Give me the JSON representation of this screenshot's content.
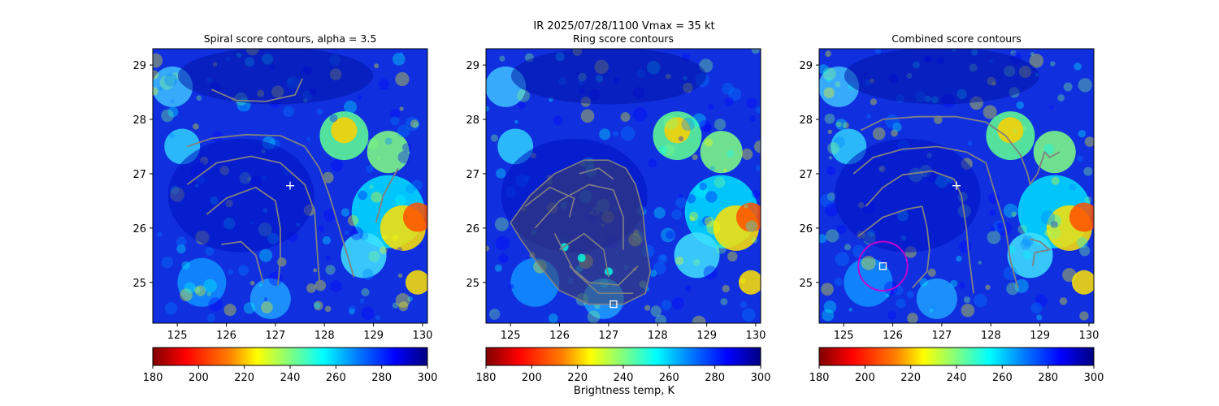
{
  "suptitle": "IR  2025/07/28/1100    Vmax = 35 kt",
  "colorbar_label": "Brightness temp, K",
  "colormap": [
    "#800000",
    "#ff0000",
    "#ff8000",
    "#ffff00",
    "#80ff80",
    "#00ffff",
    "#0080ff",
    "#0000ff",
    "#000080"
  ],
  "contour_color": "#808080",
  "marker_color": "#ffffff",
  "circle_color": "#cc00cc",
  "chart_data": [
    {
      "type": "heatmap",
      "title": "Spiral score contours, alpha =  3.5",
      "xlim": [
        124.5,
        130.1
      ],
      "ylim": [
        24.25,
        29.3
      ],
      "xticks": [
        "125",
        "126",
        "127",
        "128",
        "129",
        "130"
      ],
      "yticks": [
        "25",
        "26",
        "27",
        "28",
        "29"
      ],
      "colorbar": {
        "range": [
          180,
          300
        ],
        "ticks": [
          "180",
          "200",
          "220",
          "240",
          "260",
          "280",
          "300"
        ]
      },
      "center_marker": {
        "symbol": "plus",
        "x": 127.3,
        "y": 26.78
      },
      "contours": [
        [
          [
            125.7,
            28.55
          ],
          [
            126.2,
            28.35
          ],
          [
            126.8,
            28.33
          ],
          [
            127.4,
            28.45
          ],
          [
            127.55,
            28.75
          ]
        ],
        [
          [
            125.2,
            27.5
          ],
          [
            125.7,
            27.65
          ],
          [
            126.4,
            27.72
          ],
          [
            127.1,
            27.7
          ],
          [
            127.6,
            27.5
          ],
          [
            127.9,
            27.1
          ],
          [
            128.1,
            26.6
          ],
          [
            128.3,
            26.0
          ],
          [
            128.5,
            25.4
          ],
          [
            128.6,
            25.1
          ]
        ],
        [
          [
            125.2,
            26.8
          ],
          [
            125.8,
            27.2
          ],
          [
            126.5,
            27.32
          ],
          [
            127.1,
            27.2
          ],
          [
            127.6,
            26.8
          ],
          [
            127.8,
            26.3
          ],
          [
            127.85,
            25.6
          ],
          [
            127.9,
            25.0
          ]
        ],
        [
          [
            125.6,
            26.25
          ],
          [
            126.0,
            26.55
          ],
          [
            126.6,
            26.75
          ],
          [
            127.0,
            26.5
          ],
          [
            127.1,
            26.0
          ],
          [
            127.1,
            25.4
          ],
          [
            127.05,
            24.95
          ]
        ],
        [
          [
            125.9,
            25.7
          ],
          [
            126.3,
            25.75
          ],
          [
            126.6,
            25.5
          ],
          [
            126.75,
            25.0
          ]
        ],
        [
          [
            129.5,
            27.1
          ],
          [
            129.2,
            26.6
          ],
          [
            129.05,
            26.1
          ]
        ]
      ]
    },
    {
      "type": "heatmap",
      "title": "Ring score contours",
      "xlim": [
        124.5,
        130.1
      ],
      "ylim": [
        24.25,
        29.3
      ],
      "xticks": [
        "125",
        "126",
        "127",
        "128",
        "129",
        "130"
      ],
      "yticks": [
        "25",
        "26",
        "27",
        "28",
        "29"
      ],
      "colorbar": {
        "range": [
          180,
          300
        ],
        "ticks": [
          "180",
          "200",
          "220",
          "240",
          "260",
          "280",
          "300"
        ]
      },
      "center_marker": {
        "symbol": "square",
        "x": 127.1,
        "y": 24.6
      },
      "contours": [
        [
          [
            125.0,
            26.1
          ],
          [
            125.4,
            26.6
          ],
          [
            125.9,
            27.0
          ],
          [
            126.5,
            27.25
          ],
          [
            127.0,
            27.25
          ],
          [
            127.35,
            27.1
          ],
          [
            127.55,
            26.8
          ],
          [
            127.7,
            26.3
          ],
          [
            127.75,
            25.8
          ],
          [
            127.85,
            25.2
          ],
          [
            127.75,
            24.8
          ],
          [
            127.3,
            24.6
          ],
          [
            126.6,
            24.6
          ],
          [
            126.0,
            24.85
          ],
          [
            125.6,
            25.3
          ],
          [
            125.2,
            25.8
          ],
          [
            125.0,
            26.1
          ]
        ],
        [
          [
            125.5,
            26.0
          ],
          [
            126.0,
            26.5
          ],
          [
            126.6,
            26.8
          ],
          [
            127.1,
            26.7
          ],
          [
            127.3,
            26.2
          ],
          [
            127.3,
            25.6
          ]
        ],
        [
          [
            126.0,
            25.6
          ],
          [
            126.5,
            25.9
          ],
          [
            126.9,
            25.6
          ],
          [
            127.0,
            25.1
          ]
        ],
        [
          [
            125.3,
            26.4
          ],
          [
            125.8,
            26.75
          ],
          [
            126.3,
            26.55
          ],
          [
            126.2,
            26.2
          ]
        ],
        [
          [
            126.4,
            27.0
          ],
          [
            126.8,
            27.1
          ],
          [
            127.1,
            26.9
          ]
        ],
        [
          [
            126.2,
            25.3
          ],
          [
            126.6,
            25.0
          ],
          [
            127.2,
            24.95
          ],
          [
            127.6,
            25.3
          ]
        ],
        [
          [
            125.9,
            25.9
          ],
          [
            126.3,
            25.2
          ],
          [
            126.8,
            24.8
          ],
          [
            127.5,
            24.8
          ]
        ]
      ],
      "cyan_patches": [
        [
          126.1,
          25.65
        ],
        [
          126.45,
          25.45
        ],
        [
          127.0,
          25.2
        ]
      ]
    },
    {
      "type": "heatmap",
      "title": "Combined score contours",
      "xlim": [
        124.5,
        130.1
      ],
      "ylim": [
        24.25,
        29.3
      ],
      "xticks": [
        "125",
        "126",
        "127",
        "128",
        "129",
        "130"
      ],
      "yticks": [
        "25",
        "26",
        "27",
        "28",
        "29"
      ],
      "colorbar": {
        "range": [
          180,
          300
        ],
        "ticks": [
          "180",
          "200",
          "220",
          "240",
          "260",
          "280",
          "300"
        ]
      },
      "center_marker": {
        "symbol": "plus",
        "x": 127.3,
        "y": 26.78
      },
      "square_marker": {
        "x": 125.8,
        "y": 25.3
      },
      "circle": {
        "x": 125.8,
        "y": 25.3,
        "r_deg": 0.5
      },
      "contours": [
        [
          [
            125.35,
            27.8
          ],
          [
            125.8,
            28.0
          ],
          [
            126.5,
            28.05
          ],
          [
            127.3,
            28.05
          ],
          [
            127.9,
            27.95
          ],
          [
            128.3,
            27.7
          ],
          [
            128.6,
            27.35
          ],
          [
            128.75,
            27.0
          ],
          [
            128.8,
            26.8
          ],
          [
            128.95,
            27.0
          ],
          [
            129.1,
            27.4
          ],
          [
            129.2,
            27.3
          ],
          [
            129.4,
            27.4
          ]
        ],
        [
          [
            125.2,
            27.0
          ],
          [
            125.6,
            27.3
          ],
          [
            126.2,
            27.45
          ],
          [
            126.9,
            27.5
          ],
          [
            127.5,
            27.4
          ],
          [
            127.9,
            27.2
          ],
          [
            128.1,
            26.6
          ],
          [
            128.3,
            26.0
          ],
          [
            128.4,
            25.4
          ],
          [
            128.55,
            24.9
          ]
        ],
        [
          [
            125.45,
            26.4
          ],
          [
            125.8,
            26.75
          ],
          [
            126.2,
            26.98
          ],
          [
            126.8,
            27.05
          ],
          [
            127.25,
            26.9
          ],
          [
            127.4,
            26.6
          ],
          [
            127.5,
            26.0
          ],
          [
            127.55,
            25.5
          ],
          [
            127.65,
            24.8
          ]
        ],
        [
          [
            125.3,
            25.85
          ],
          [
            125.8,
            26.2
          ],
          [
            126.3,
            26.35
          ],
          [
            126.6,
            26.4
          ],
          [
            126.7,
            26.0
          ],
          [
            126.75,
            25.6
          ],
          [
            126.7,
            25.2
          ],
          [
            126.4,
            24.9
          ]
        ],
        [
          [
            128.8,
            25.8
          ],
          [
            129.0,
            25.75
          ],
          [
            129.2,
            25.6
          ],
          [
            128.9,
            25.55
          ],
          [
            128.85,
            25.3
          ]
        ]
      ]
    }
  ]
}
